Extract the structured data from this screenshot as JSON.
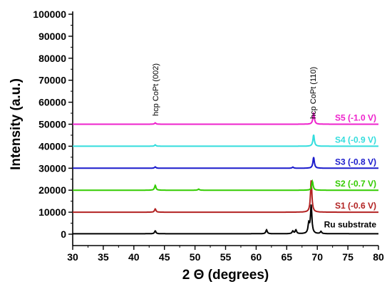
{
  "chart_data": {
    "type": "line",
    "title": "",
    "xlabel": "2 Θ (degrees)",
    "ylabel": "Intensity (a.u.)",
    "xlim": [
      30,
      80
    ],
    "ylim": [
      0,
      100000
    ],
    "x_ticks": [
      30,
      35,
      40,
      45,
      50,
      55,
      60,
      65,
      70,
      75,
      80
    ],
    "y_ticks": [
      0,
      10000,
      20000,
      30000,
      40000,
      50000,
      60000,
      70000,
      80000,
      90000,
      100000
    ],
    "grid": false,
    "annotations": [
      {
        "text": "hcp CoPt (002)",
        "x": 43.5
      },
      {
        "text": "hcp CoPt (110)",
        "x": 69.3
      }
    ],
    "series": [
      {
        "name": "Ru substrate",
        "color": "#000000",
        "baseline": 200,
        "peaks": [
          {
            "x": 43.5,
            "y": 1500
          },
          {
            "x": 61.7,
            "y": 2000
          },
          {
            "x": 66.0,
            "y": 1400
          },
          {
            "x": 66.5,
            "y": 1900
          },
          {
            "x": 68.6,
            "y": 4500
          },
          {
            "x": 69.0,
            "y": 13000
          },
          {
            "x": 70.6,
            "y": 1200
          }
        ]
      },
      {
        "name": "S1 (-0.6 V)",
        "color": "#b22222",
        "baseline": 10000,
        "peaks": [
          {
            "x": 43.5,
            "y": 11500
          },
          {
            "x": 69.0,
            "y": 24500
          }
        ]
      },
      {
        "name": "S2 (-0.7 V)",
        "color": "#33cc00",
        "baseline": 20000,
        "peaks": [
          {
            "x": 43.5,
            "y": 22200
          },
          {
            "x": 50.6,
            "y": 20500
          },
          {
            "x": 69.2,
            "y": 24000
          }
        ]
      },
      {
        "name": "S3 (-0.8 V)",
        "color": "#1a1acc",
        "baseline": 30000,
        "peaks": [
          {
            "x": 43.5,
            "y": 30600
          },
          {
            "x": 66.0,
            "y": 30500
          },
          {
            "x": 69.4,
            "y": 35000
          }
        ]
      },
      {
        "name": "S4 (-0.9 V)",
        "color": "#33dddd",
        "baseline": 40000,
        "peaks": [
          {
            "x": 43.5,
            "y": 40600
          },
          {
            "x": 69.4,
            "y": 45200
          }
        ]
      },
      {
        "name": "S5 (-1.0 V)",
        "color": "#ee22cc",
        "baseline": 50000,
        "peaks": [
          {
            "x": 43.5,
            "y": 50600
          },
          {
            "x": 69.4,
            "y": 55300
          }
        ]
      }
    ]
  }
}
